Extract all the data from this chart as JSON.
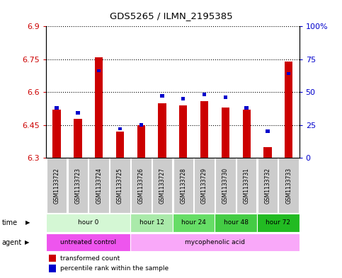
{
  "title": "GDS5265 / ILMN_2195385",
  "samples": [
    "GSM1133722",
    "GSM1133723",
    "GSM1133724",
    "GSM1133725",
    "GSM1133726",
    "GSM1133727",
    "GSM1133728",
    "GSM1133729",
    "GSM1133730",
    "GSM1133731",
    "GSM1133732",
    "GSM1133733"
  ],
  "transformed_count": [
    6.52,
    6.48,
    6.76,
    6.42,
    6.45,
    6.55,
    6.54,
    6.56,
    6.53,
    6.52,
    6.35,
    6.74
  ],
  "percentile_rank": [
    37,
    33,
    65,
    21,
    24,
    46,
    44,
    47,
    45,
    37,
    19,
    63
  ],
  "ymin": 6.3,
  "ymax": 6.9,
  "yticks": [
    6.3,
    6.45,
    6.6,
    6.75,
    6.9
  ],
  "ytick_labels": [
    "6.3",
    "6.45",
    "6.6",
    "6.75",
    "6.9"
  ],
  "right_yticks": [
    0,
    25,
    50,
    75,
    100
  ],
  "right_ytick_labels": [
    "0",
    "25",
    "50",
    "75",
    "100%"
  ],
  "bar_color_red": "#cc0000",
  "bar_color_blue": "#0000cc",
  "time_groups": [
    {
      "label": "hour 0",
      "start": 0,
      "end": 3,
      "color": "#d4f7d4"
    },
    {
      "label": "hour 12",
      "start": 4,
      "end": 5,
      "color": "#aaeaaa"
    },
    {
      "label": "hour 24",
      "start": 6,
      "end": 7,
      "color": "#66dd66"
    },
    {
      "label": "hour 48",
      "start": 8,
      "end": 9,
      "color": "#44cc44"
    },
    {
      "label": "hour 72",
      "start": 10,
      "end": 11,
      "color": "#22bb22"
    }
  ],
  "agent_groups": [
    {
      "label": "untreated control",
      "start": 0,
      "end": 3,
      "color": "#ee55ee"
    },
    {
      "label": "mycophenolic acid",
      "start": 4,
      "end": 11,
      "color": "#f9a8f9"
    }
  ],
  "axis_color_red": "#cc0000",
  "axis_color_blue": "#0000cc",
  "sample_bg_color": "#cccccc",
  "legend_red_label": "transformed count",
  "legend_blue_label": "percentile rank within the sample",
  "figsize": [
    4.83,
    3.93
  ],
  "dpi": 100
}
